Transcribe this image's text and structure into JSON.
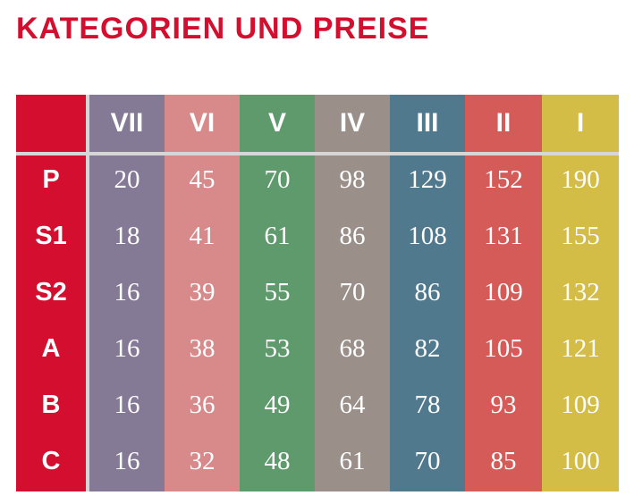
{
  "title": "KATEGORIEN UND PREISE",
  "colors": {
    "title": "#d40e2e",
    "label_column": "#d40e2e",
    "VII": "#857a96",
    "VI": "#d88a8a",
    "V": "#5f9a6c",
    "IV": "#9a8f89",
    "III": "#51798e",
    "II": "#d45b58",
    "I": "#d3bd46"
  },
  "table": {
    "columns": [
      {
        "label": "VII",
        "values": [
          "20",
          "18",
          "16",
          "16",
          "16",
          "16"
        ]
      },
      {
        "label": "VI",
        "values": [
          "45",
          "41",
          "39",
          "38",
          "36",
          "32"
        ]
      },
      {
        "label": "V",
        "values": [
          "70",
          "61",
          "55",
          "53",
          "49",
          "48"
        ]
      },
      {
        "label": "IV",
        "values": [
          "98",
          "86",
          "70",
          "68",
          "64",
          "61"
        ]
      },
      {
        "label": "III",
        "values": [
          "129",
          "108",
          "86",
          "82",
          "78",
          "70"
        ]
      },
      {
        "label": "II",
        "values": [
          "152",
          "131",
          "109",
          "105",
          "93",
          "85"
        ]
      },
      {
        "label": "I",
        "values": [
          "190",
          "155",
          "132",
          "121",
          "109",
          "100"
        ]
      }
    ],
    "rows": [
      "P",
      "S1",
      "S2",
      "A",
      "B",
      "C"
    ]
  }
}
